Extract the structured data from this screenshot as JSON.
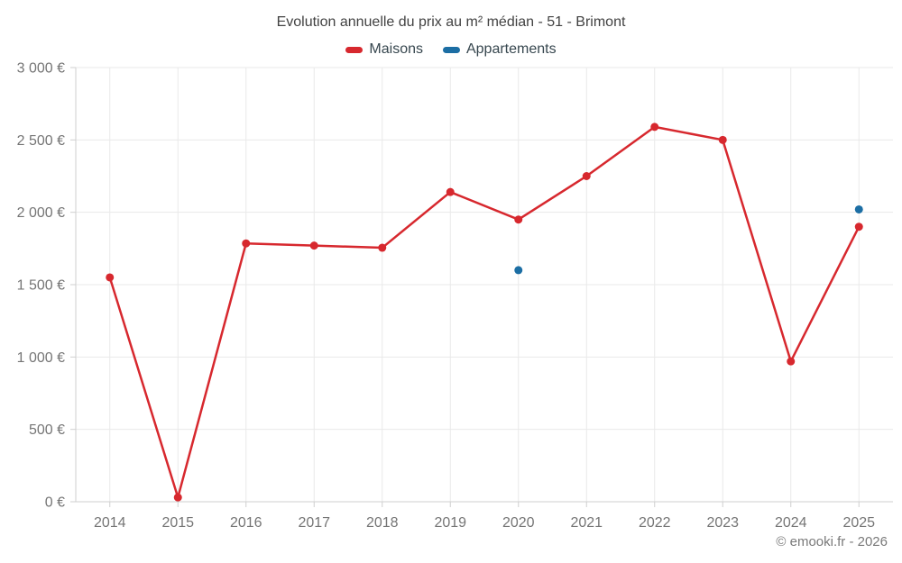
{
  "title": "Evolution annuelle du prix au m² médian - 51 - Brimont",
  "footer": "© emooki.fr - 2026",
  "colors": {
    "maisons": "#d7282e",
    "appartements": "#1c6ea4",
    "grid": "#e9e9e9",
    "axis": "#cfcfcf",
    "axis_label": "#757575"
  },
  "chart_data": {
    "type": "line",
    "title": "Evolution annuelle du prix au m² médian - 51 - Brimont",
    "categories": [
      "2014",
      "2015",
      "2016",
      "2017",
      "2018",
      "2019",
      "2020",
      "2021",
      "2022",
      "2023",
      "2024",
      "2025"
    ],
    "series": [
      {
        "name": "Maisons",
        "color": "#d7282e",
        "marker": "circle",
        "values": [
          1550,
          30,
          1785,
          1770,
          1755,
          2140,
          1950,
          2250,
          2590,
          2500,
          970,
          1900
        ]
      },
      {
        "name": "Appartements",
        "color": "#1c6ea4",
        "marker": "circle",
        "values": [
          null,
          null,
          null,
          null,
          null,
          null,
          1600,
          null,
          null,
          null,
          null,
          2020
        ]
      }
    ],
    "xlabel": "",
    "ylabel": "",
    "ylim": [
      0,
      3000
    ],
    "y_tick_step": 500,
    "y_tick_labels": [
      "0 €",
      "500 €",
      "1 000 €",
      "1 500 €",
      "2 000 €",
      "2 500 €",
      "3 000 €"
    ],
    "grid": true,
    "legend_position": "top"
  }
}
